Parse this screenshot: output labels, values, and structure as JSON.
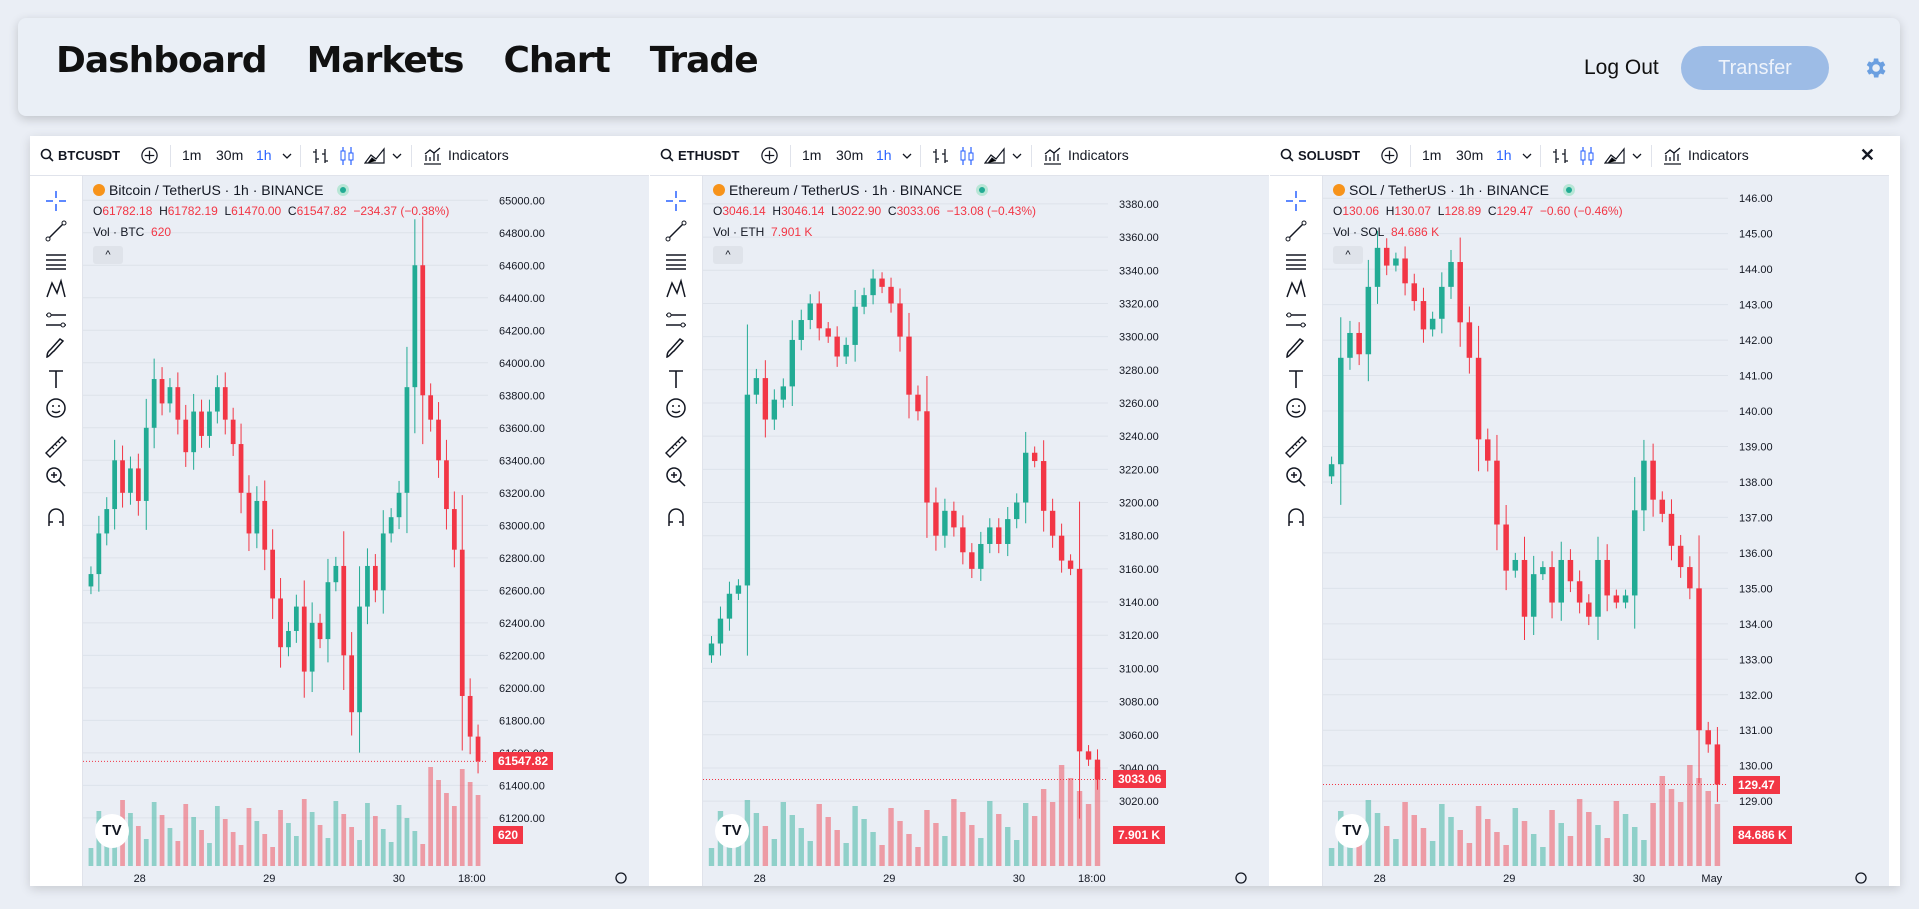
{
  "nav": {
    "dashboard": "Dashboard",
    "markets": "Markets",
    "chart": "Chart",
    "trade": "Trade",
    "logout": "Log Out",
    "transfer": "Transfer"
  },
  "common": {
    "intervals": [
      "1m",
      "30m",
      "1h"
    ],
    "indicators": "Indicators",
    "collapse": "^",
    "tv_logo": "TV"
  },
  "colors": {
    "up": "#22ab94",
    "down": "#f23645",
    "accent": "#2962ff",
    "transfer_bg": "#9dbce6"
  },
  "charts": [
    {
      "symbol": "BTCUSDT",
      "title": "Bitcoin / TetherUS · 1h · BINANCE",
      "coin_icon": "bitcoin-icon",
      "open": "61782.18",
      "high": "61782.19",
      "low": "61470.00",
      "close": "61547.82",
      "change": "−234.37 (−0.38%)",
      "vol_label": "Vol · BTC",
      "vol_value": "620",
      "price_label": "61547.82",
      "vol_tag": "620",
      "y_ticks": [
        "65000.00",
        "64800.00",
        "64600.00",
        "64400.00",
        "64200.00",
        "64000.00",
        "63800.00",
        "63600.00",
        "63400.00",
        "63200.00",
        "63000.00",
        "62800.00",
        "62600.00",
        "62400.00",
        "62200.00",
        "62000.00",
        "61800.00",
        "61600.00",
        "61400.00",
        "61200.00"
      ],
      "x_ticks": [
        "28",
        "29",
        "30",
        "18:00"
      ],
      "chart_data": {
        "type": "candlestick",
        "ylim": [
          61150,
          65100
        ],
        "last_price": 61547.82,
        "close": [
          62700,
          62950,
          63100,
          63400,
          63200,
          63350,
          63150,
          63600,
          63900,
          63750,
          63850,
          63650,
          63450,
          63700,
          63550,
          63700,
          63850,
          63650,
          63500,
          63200,
          62950,
          63150,
          62850,
          62550,
          62250,
          62350,
          62500,
          62100,
          62400,
          62300,
          62650,
          62750,
          62200,
          61850,
          62500,
          62750,
          62600,
          62950,
          63050,
          63200,
          63850,
          64600,
          63800,
          63650,
          63400,
          63100,
          62850,
          61950,
          61700,
          61547.82
        ]
      }
    },
    {
      "symbol": "ETHUSDT",
      "title": "Ethereum / TetherUS · 1h · BINANCE",
      "coin_icon": "ethereum-icon",
      "open": "3046.14",
      "high": "3046.14",
      "low": "3022.90",
      "close": "3033.06",
      "change": "−13.08 (−0.43%)",
      "vol_label": "Vol · ETH",
      "vol_value": "7.901 K",
      "price_label": "3033.06",
      "vol_tag": "7.901 K",
      "y_ticks": [
        "3380.00",
        "3360.00",
        "3340.00",
        "3320.00",
        "3300.00",
        "3280.00",
        "3260.00",
        "3240.00",
        "3220.00",
        "3200.00",
        "3180.00",
        "3160.00",
        "3140.00",
        "3120.00",
        "3100.00",
        "3080.00",
        "3060.00",
        "3040.00",
        "3020.00"
      ],
      "x_ticks": [
        "28",
        "29",
        "30",
        "18:00"
      ],
      "chart_data": {
        "type": "candlestick",
        "ylim": [
          3005,
          3392
        ],
        "last_price": 3033.06,
        "close": [
          3115,
          3130,
          3145,
          3150,
          3265,
          3275,
          3250,
          3262,
          3270,
          3298,
          3310,
          3320,
          3305,
          3300,
          3288,
          3295,
          3318,
          3325,
          3335,
          3330,
          3320,
          3300,
          3265,
          3255,
          3200,
          3180,
          3195,
          3185,
          3170,
          3160,
          3175,
          3185,
          3175,
          3190,
          3200,
          3230,
          3225,
          3195,
          3180,
          3165,
          3160,
          3050,
          3045,
          3033.06
        ]
      }
    },
    {
      "symbol": "SOLUSDT",
      "title": "SOL / TetherUS · 1h · BINANCE",
      "coin_icon": "solana-icon",
      "open": "130.06",
      "high": "130.07",
      "low": "128.89",
      "close": "129.47",
      "change": "−0.60 (−0.46%)",
      "vol_label": "Vol · SOL",
      "vol_value": "84.686 K",
      "price_label": "129.47",
      "vol_tag": "84.686 K",
      "y_ticks": [
        "146.00",
        "145.00",
        "144.00",
        "143.00",
        "142.00",
        "141.00",
        "140.00",
        "139.00",
        "138.00",
        "137.00",
        "136.00",
        "135.00",
        "134.00",
        "133.00",
        "132.00",
        "131.00",
        "130.00",
        "129.00"
      ],
      "x_ticks": [
        "28",
        "29",
        "30",
        "May"
      ],
      "chart_data": {
        "type": "candlestick",
        "ylim": [
          128.3,
          146.4
        ],
        "last_price": 129.47,
        "close": [
          138.5,
          141.5,
          142.2,
          141.6,
          143.5,
          144.6,
          144.1,
          144.3,
          143.6,
          143.1,
          142.3,
          142.6,
          143.5,
          144.2,
          142.5,
          141.5,
          139.2,
          138.6,
          136.8,
          135.5,
          135.8,
          134.2,
          135.4,
          135.6,
          134.6,
          135.8,
          135.2,
          134.6,
          134.2,
          135.8,
          134.8,
          134.6,
          134.8,
          137.2,
          138.6,
          137.5,
          137.1,
          136.2,
          135.6,
          135.0,
          131.0,
          130.6,
          129.47
        ]
      }
    }
  ]
}
